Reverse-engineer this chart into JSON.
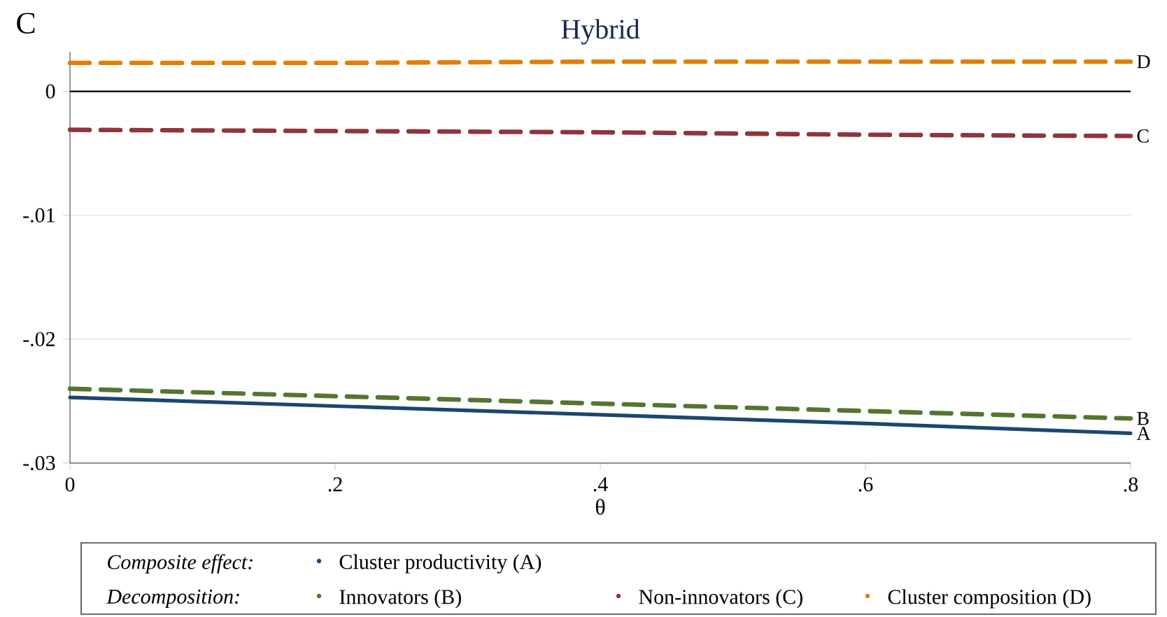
{
  "chart_data": {
    "type": "line",
    "title": "Hybrid",
    "xlabel": "θ",
    "annotations": [
      "C",
      "Composite effect:",
      "Decomposition:",
      "A",
      "B",
      "C",
      "D"
    ],
    "x": [
      0,
      0.2,
      0.4,
      0.6,
      0.8
    ],
    "series": [
      {
        "name": "Cluster productivity (A)",
        "color": "#1a476f",
        "line_style": "solid",
        "values": [
          -0.0247,
          -0.0254,
          -0.0261,
          -0.0268,
          -0.0276
        ]
      },
      {
        "name": "Innovators (B)",
        "color": "#55752f",
        "line_style": "dashed",
        "values": [
          -0.024,
          -0.0246,
          -0.0252,
          -0.0258,
          -0.0264
        ]
      },
      {
        "name": "Non-innovators (C)",
        "color": "#90353b",
        "line_style": "dashed",
        "values": [
          -0.0031,
          -0.0032,
          -0.0033,
          -0.0035,
          -0.0036
        ]
      },
      {
        "name": "Cluster composition (D)",
        "color": "#e37e00",
        "line_style": "dashed",
        "values": [
          0.0023,
          0.0023,
          0.0024,
          0.0024,
          0.0024
        ]
      }
    ],
    "xlim": [
      0,
      0.8
    ],
    "xticks": [
      0,
      {
        "value": 0.2,
        "label": ".2"
      },
      {
        "value": 0.4,
        "label": ".4"
      },
      {
        "value": 0.6,
        "label": ".6"
      },
      {
        "value": 0.8,
        "label": ".8"
      }
    ],
    "ylim": [
      -0.03,
      0.0032
    ],
    "yticks": [
      {
        "value": -0.03,
        "label": "-.03"
      },
      {
        "value": -0.02,
        "label": "-.02"
      },
      {
        "value": -0.01,
        "label": "-.01"
      },
      0
    ],
    "grid": "y",
    "legend": "bottom",
    "marker": "none",
    "ref_lines": [
      {
        "axis": "y",
        "value": 0,
        "color": "#000000"
      }
    ]
  }
}
